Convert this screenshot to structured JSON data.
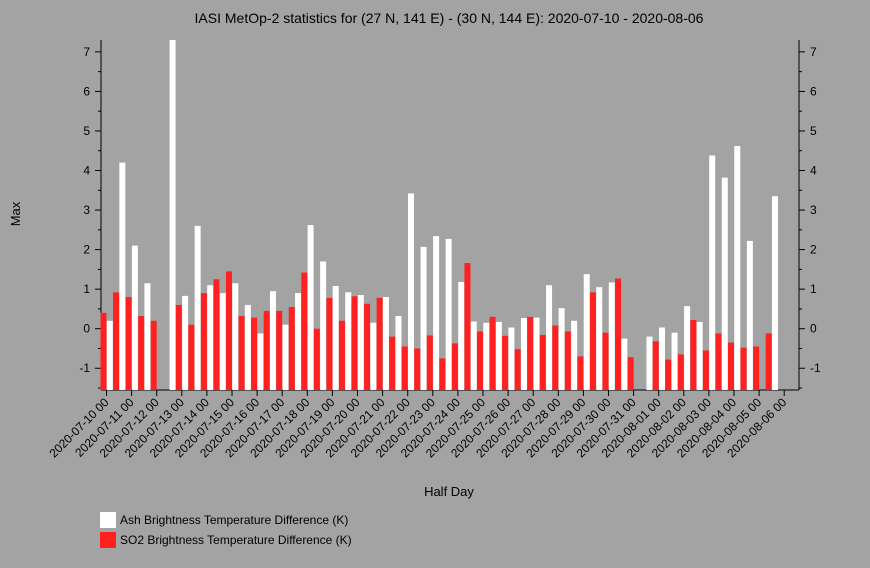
{
  "chart_data": {
    "type": "bar",
    "title": "IASI MetOp-2 statistics for (27 N, 141 E) - (30 N, 144 E): 2020-07-10 - 2020-08-06",
    "xlabel": "Half Day",
    "ylabel": "Max",
    "ylim": [
      -1.55,
      7.3
    ],
    "yticks": [
      -1,
      0,
      1,
      2,
      3,
      4,
      5,
      6,
      7
    ],
    "grid": false,
    "legend_position": "bottom-left",
    "tick_labels": [
      "2020-07-10 00",
      "2020-07-11 00",
      "2020-07-12 00",
      "2020-07-13 00",
      "2020-07-14 00",
      "2020-07-15 00",
      "2020-07-16 00",
      "2020-07-17 00",
      "2020-07-18 00",
      "2020-07-19 00",
      "2020-07-20 00",
      "2020-07-21 00",
      "2020-07-22 00",
      "2020-07-23 00",
      "2020-07-24 00",
      "2020-07-25 00",
      "2020-07-26 00",
      "2020-07-27 00",
      "2020-07-28 00",
      "2020-07-29 00",
      "2020-07-30 00",
      "2020-07-31 00",
      "2020-08-01 00",
      "2020-08-02 00",
      "2020-08-03 00",
      "2020-08-04 00",
      "2020-08-05 00",
      "2020-08-06 00"
    ],
    "series": [
      {
        "name": "Ash Brightness Temperature Difference (K)",
        "color": "#ffffff",
        "values": [
          0.2,
          4.2,
          2.1,
          1.15,
          null,
          7.3,
          0.83,
          2.6,
          1.1,
          0.9,
          1.15,
          0.6,
          -0.12,
          0.95,
          0.1,
          0.9,
          2.62,
          1.7,
          1.08,
          0.92,
          0.85,
          0.15,
          0.8,
          0.32,
          3.42,
          2.07,
          2.34,
          2.27,
          1.18,
          0.18,
          0.15,
          0.17,
          0.03,
          0.27,
          0.28,
          1.1,
          0.52,
          0.2,
          1.38,
          1.05,
          1.17,
          -0.25,
          null,
          -0.2,
          0.03,
          -0.1,
          0.57,
          0.17,
          4.38,
          3.82,
          4.62,
          2.22,
          null,
          3.35
        ]
      },
      {
        "name": "SO2 Brightness Temperature Difference (K)",
        "color": "#ff2020",
        "values": [
          0.4,
          0.92,
          0.8,
          0.32,
          0.2,
          null,
          0.6,
          0.1,
          0.9,
          1.25,
          1.45,
          0.32,
          0.28,
          0.45,
          0.45,
          0.55,
          1.42,
          0.0,
          0.78,
          0.2,
          0.82,
          0.63,
          0.78,
          -0.2,
          -0.45,
          -0.5,
          -0.17,
          -0.75,
          -0.37,
          1.66,
          -0.07,
          0.3,
          -0.18,
          -0.52,
          0.3,
          -0.16,
          0.08,
          -0.07,
          -0.7,
          0.92,
          -0.1,
          1.27,
          -0.72,
          null,
          -0.32,
          -0.78,
          -0.65,
          0.22,
          -0.55,
          -0.12,
          -0.35,
          -0.48,
          -0.45,
          -0.12
        ]
      }
    ]
  }
}
